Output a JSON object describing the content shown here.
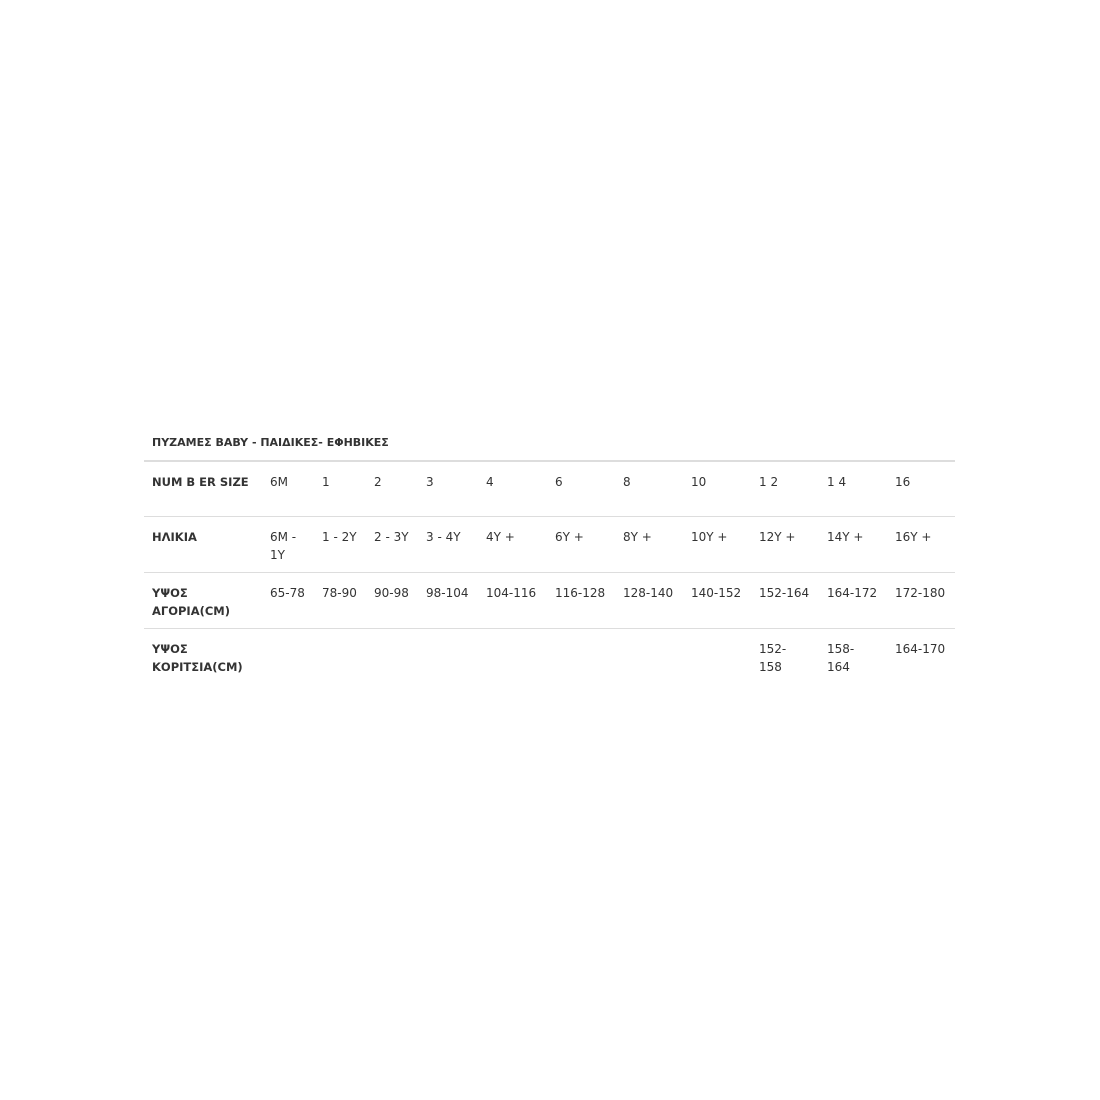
{
  "title": "ΠΥΖΑΜΕΣ BABY - ΠΑΙΔΙΚΕΣ- ΕΦΗΒΙΚΕΣ",
  "table": {
    "rows": [
      {
        "label": "NUM B ER SIZE",
        "cells": [
          "6M",
          "1",
          "2",
          "3",
          "4",
          "6",
          "8",
          "10",
          "1 2",
          "1 4",
          "16"
        ]
      },
      {
        "label": "ΗΛΙΚΙΑ",
        "cells": [
          "6M - 1Y",
          "1 - 2Y",
          "2 - 3Y",
          "3 - 4Y",
          "4Y +",
          "6Y +",
          "8Y +",
          "10Y +",
          "12Y +",
          "14Y +",
          "16Y +"
        ]
      },
      {
        "label": "ΥΨΟΣ ΑΓΟΡΙΑ(CM)",
        "cells": [
          "65-78",
          "78-90",
          "90-98",
          "98-104",
          "104-116",
          "116-128",
          "128-140",
          "140-152",
          "152-164",
          "164-172",
          "172-180"
        ]
      },
      {
        "label": "ΥΨΟΣ ΚΟΡΙΤΣΙΑ(CM)",
        "cells": [
          "",
          "",
          "",
          "",
          "",
          "",
          "",
          "",
          "152- 158",
          "158- 164",
          "164-170"
        ]
      }
    ]
  }
}
